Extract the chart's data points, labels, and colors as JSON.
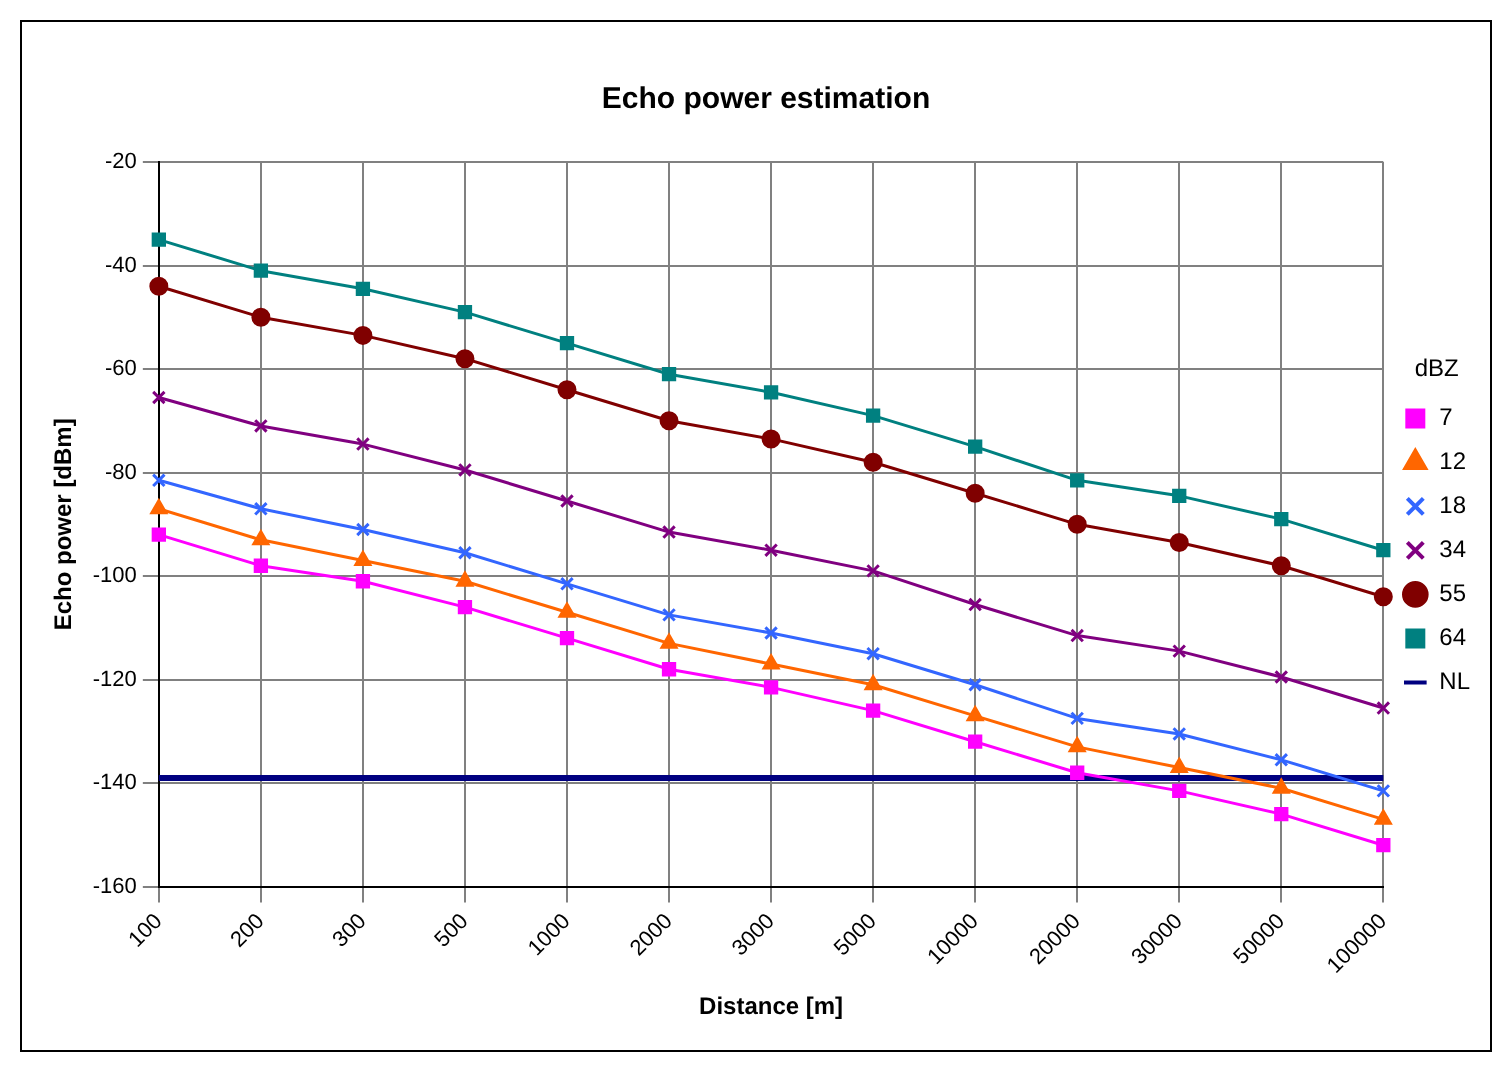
{
  "chart_data": {
    "type": "line",
    "title": "Echo power estimation",
    "xlabel": "Distance [m]",
    "ylabel": "Echo power [dBm]",
    "legend_title": "dBZ",
    "categories": [
      "100",
      "200",
      "300",
      "500",
      "1000",
      "2000",
      "3000",
      "5000",
      "10000",
      "20000",
      "30000",
      "50000",
      "100000"
    ],
    "series": [
      {
        "name": "7",
        "color": "#ff00ff",
        "marker": "square",
        "values": [
          -92,
          -98,
          -101,
          -106,
          -112,
          -118,
          -121.5,
          -126,
          -132,
          -138,
          -141.5,
          -146,
          -152
        ]
      },
      {
        "name": "12",
        "color": "#ff6600",
        "marker": "triangle",
        "values": [
          -87,
          -93,
          -97,
          -101,
          -107,
          -113,
          -117,
          -121,
          -127,
          -133,
          -137,
          -141,
          -147
        ]
      },
      {
        "name": "18",
        "color": "#3366ff",
        "marker": "cross",
        "values": [
          -81.5,
          -87,
          -91,
          -95.5,
          -101.5,
          -107.5,
          -111,
          -115,
          -121,
          -127.5,
          -130.5,
          -135.5,
          -141.5
        ]
      },
      {
        "name": "34",
        "color": "#800080",
        "marker": "cross",
        "values": [
          -65.5,
          -71,
          -74.5,
          -79.5,
          -85.5,
          -91.5,
          -95,
          -99,
          -105.5,
          -111.5,
          -114.5,
          -119.5,
          -125.5
        ]
      },
      {
        "name": "55",
        "color": "#800000",
        "marker": "circle",
        "values": [
          -44,
          -50,
          -53.5,
          -58,
          -64,
          -70,
          -73.5,
          -78,
          -84,
          -90,
          -93.5,
          -98,
          -104
        ]
      },
      {
        "name": "64",
        "color": "#008080",
        "marker": "square",
        "values": [
          -35,
          -41,
          -44.5,
          -49,
          -55,
          -61,
          -64.5,
          -69,
          -75,
          -81.5,
          -84.5,
          -89,
          -95
        ]
      },
      {
        "name": "NL",
        "color": "#000080",
        "marker": "none",
        "values": [
          -139,
          -139,
          -139,
          -139,
          -139,
          -139,
          -139,
          -139,
          -139,
          -139,
          -139,
          -139,
          -139
        ]
      }
    ],
    "ylim": [
      -160,
      -20
    ],
    "yticks": [
      -160,
      -140,
      -120,
      -100,
      -80,
      -60,
      -40,
      -20
    ],
    "grid": true,
    "legend": "right",
    "line_style": "solid"
  }
}
